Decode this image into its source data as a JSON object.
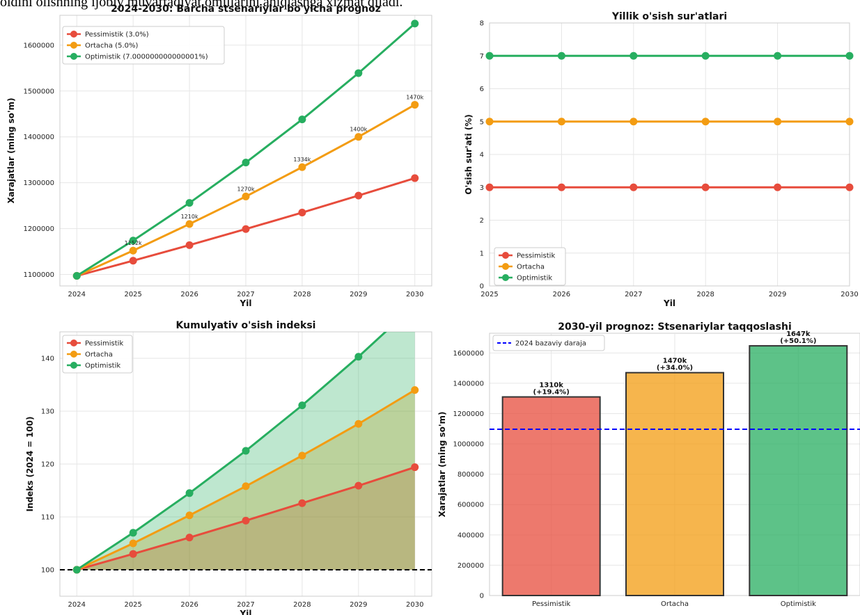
{
  "top_text": "oldini olishning ijobiy muvaffaqiyat omillarini aniqlashga xizmat qiladi.",
  "colors": {
    "pessimistik": "#e74c3c",
    "ortacha": "#f39c12",
    "optimistik": "#27ae60",
    "baseline": "#0000ff"
  },
  "chart_data": [
    {
      "type": "line",
      "title": "2024-2030: Barcha stsenariylar bo'yicha prognoz",
      "xlabel": "Yil",
      "ylabel": "Xarajatlar (ming so'm)",
      "x": [
        2024,
        2025,
        2026,
        2027,
        2028,
        2029,
        2030
      ],
      "xlim": [
        2023.7,
        2030.3
      ],
      "ylim": [
        1075000,
        1665000
      ],
      "yticks": [
        1100000,
        1200000,
        1300000,
        1400000,
        1500000,
        1600000
      ],
      "legend": "top-left",
      "grid": true,
      "series": [
        {
          "name": "Pessimistik (3.0%)",
          "color_key": "pessimistik",
          "values": [
            1097000,
            1130000,
            1164000,
            1199000,
            1235000,
            1272000,
            1310000
          ]
        },
        {
          "name": "Ortacha (5.0%)",
          "color_key": "ortacha",
          "values": [
            1097000,
            1152000,
            1210000,
            1270000,
            1334000,
            1400000,
            1470000
          ],
          "labels": [
            "",
            "1152k",
            "1210k",
            "1270k",
            "1334k",
            "1400k",
            "1470k"
          ]
        },
        {
          "name": "Optimistik (7.000000000000001%)",
          "color_key": "optimistik",
          "values": [
            1097000,
            1174000,
            1256000,
            1344000,
            1438000,
            1539000,
            1647000
          ]
        }
      ]
    },
    {
      "type": "line",
      "title": "Yillik o'sish sur'atlari",
      "xlabel": "Yil",
      "ylabel": "O'sish sur'ati (%)",
      "x": [
        2025,
        2026,
        2027,
        2028,
        2029,
        2030
      ],
      "xlim": [
        2025,
        2030
      ],
      "ylim": [
        0,
        8
      ],
      "yticks": [
        0,
        1,
        2,
        3,
        4,
        5,
        6,
        7,
        8
      ],
      "legend": "bottom-left",
      "grid": true,
      "series": [
        {
          "name": "Pessimistik",
          "color_key": "pessimistik",
          "values": [
            3,
            3,
            3,
            3,
            3,
            3
          ]
        },
        {
          "name": "Ortacha",
          "color_key": "ortacha",
          "values": [
            5,
            5,
            5,
            5,
            5,
            5
          ]
        },
        {
          "name": "Optimistik",
          "color_key": "optimistik",
          "values": [
            7,
            7,
            7,
            7,
            7,
            7
          ]
        }
      ]
    },
    {
      "type": "area",
      "title": "Kumulyativ o'sish indeksi",
      "xlabel": "Yil",
      "ylabel": "Indeks (2024 = 100)",
      "x": [
        2024,
        2025,
        2026,
        2027,
        2028,
        2029,
        2030
      ],
      "xlim": [
        2023.7,
        2030.3
      ],
      "ylim": [
        95,
        145
      ],
      "yticks": [
        100,
        110,
        120,
        130,
        140
      ],
      "baseline": 100,
      "legend": "top-left",
      "grid": true,
      "series": [
        {
          "name": "Pessimistik",
          "color_key": "pessimistik",
          "values": [
            100,
            103.0,
            106.1,
            109.3,
            112.6,
            115.9,
            119.4
          ]
        },
        {
          "name": "Ortacha",
          "color_key": "ortacha",
          "values": [
            100,
            105.0,
            110.3,
            115.8,
            121.6,
            127.6,
            134.0
          ]
        },
        {
          "name": "Optimistik",
          "color_key": "optimistik",
          "values": [
            100,
            107.0,
            114.5,
            122.5,
            131.1,
            140.3,
            150.1
          ]
        }
      ]
    },
    {
      "type": "bar",
      "title": "2030-yil prognoz: Stsenariylar taqqoslashi",
      "xlabel": "",
      "ylabel": "Xarajatlar (ming so'm)",
      "categories": [
        "Pessimistik",
        "Ortacha",
        "Optimistik"
      ],
      "color_keys": [
        "pessimistik",
        "ortacha",
        "optimistik"
      ],
      "values": [
        1310000,
        1470000,
        1647000
      ],
      "labels": [
        "1310k\n(+19.4%)",
        "1470k\n(+34.0%)",
        "1647k\n(+50.1%)"
      ],
      "ylim": [
        0,
        1730000
      ],
      "yticks": [
        0,
        200000,
        400000,
        600000,
        800000,
        1000000,
        1200000,
        1400000,
        1600000
      ],
      "baseline": 1097000,
      "baseline_label": "2024 bazaviy daraja",
      "legend": "top-left",
      "grid": true
    }
  ]
}
